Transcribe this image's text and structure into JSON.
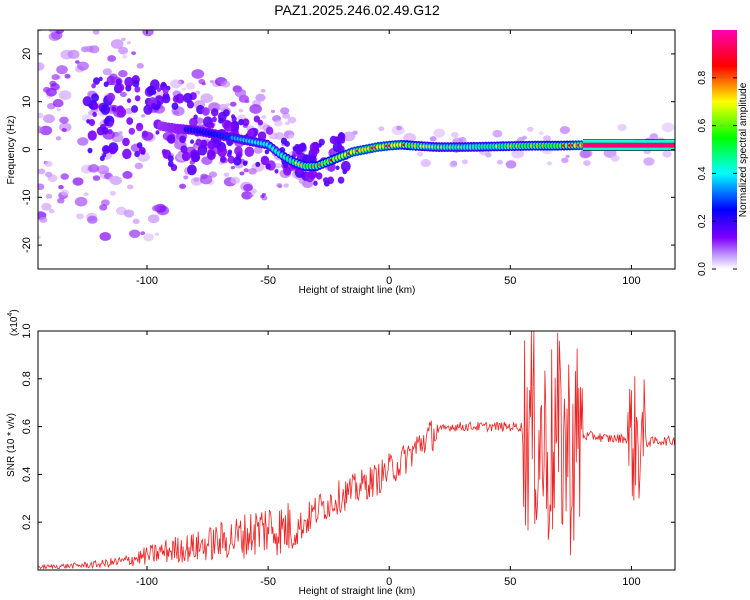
{
  "title": "PAZ1.2025.246.02.49.G12",
  "chart_data": [
    {
      "type": "heatmap",
      "xlabel": "Height of straight line (km)",
      "ylabel": "Frequency (Hz)",
      "xlim": [
        -145,
        118
      ],
      "ylim": [
        -25,
        25
      ],
      "xticks": [
        -100,
        -50,
        0,
        50,
        100
      ],
      "yticks": [
        -20,
        -10,
        0,
        10,
        20
      ],
      "colorbar": {
        "label": "Normalized spectral amplitude",
        "range": [
          0,
          1
        ],
        "ticks": [
          0.0,
          0.2,
          0.4,
          0.6,
          0.8
        ],
        "colormap": [
          "#ffffff",
          "#8000ff",
          "#0000ff",
          "#00ffff",
          "#00ff00",
          "#ffff00",
          "#ff0000",
          "#ff00b0"
        ]
      },
      "ridge": {
        "x": [
          -145,
          -130,
          -120,
          -110,
          -100,
          -90,
          -80,
          -70,
          -60,
          -50,
          -45,
          -40,
          -35,
          -30,
          -25,
          -20,
          -15,
          -10,
          -5,
          0,
          5,
          10,
          20,
          30,
          40,
          50,
          60,
          70,
          80,
          90,
          100,
          110,
          118
        ],
        "y": [
          6,
          7,
          7,
          6,
          5.5,
          4.5,
          4,
          3,
          2,
          1,
          -1,
          -2.5,
          -3.5,
          -3.5,
          -2.5,
          -1.5,
          -0.5,
          0,
          0.5,
          0.8,
          1,
          0.8,
          0.5,
          0.5,
          0.6,
          0.7,
          0.8,
          0.8,
          0.9,
          0.9,
          0.9,
          0.9,
          0.9
        ],
        "amp": [
          0.15,
          0.2,
          0.25,
          0.3,
          0.3,
          0.35,
          0.4,
          0.45,
          0.5,
          0.55,
          0.6,
          0.65,
          0.7,
          0.75,
          0.8,
          0.85,
          0.9,
          0.92,
          0.92,
          0.9,
          0.88,
          0.7,
          0.6,
          0.6,
          0.65,
          0.7,
          0.7,
          0.75,
          0.95,
          0.95,
          0.95,
          0.95,
          0.95
        ]
      }
    },
    {
      "type": "line",
      "xlabel": "Height of straight line (km)",
      "ylabel": "SNR (10 * v/v)",
      "scale_label": "(x10",
      "scale_exp": "4",
      "scale_close": ")",
      "xlim": [
        -145,
        118
      ],
      "ylim": [
        0,
        1.0
      ],
      "xticks": [
        -100,
        -50,
        0,
        50,
        100
      ],
      "yticks": [
        0.2,
        0.4,
        0.6,
        0.8,
        1.0
      ],
      "line_color": "#ee2222",
      "series": [
        {
          "x": [
            -145,
            -130,
            -120,
            -110,
            -100,
            -90,
            -80,
            -70,
            -60,
            -50,
            -45,
            -40,
            -35,
            -30,
            -25,
            -20,
            -15,
            -10,
            -5,
            0,
            5,
            10,
            15,
            20,
            25,
            30,
            40,
            50,
            55,
            60,
            65,
            70,
            75,
            80,
            85,
            90,
            95,
            100,
            105,
            110,
            118
          ],
          "y": [
            0.01,
            0.015,
            0.02,
            0.03,
            0.05,
            0.07,
            0.08,
            0.1,
            0.12,
            0.15,
            0.14,
            0.15,
            0.2,
            0.25,
            0.28,
            0.31,
            0.33,
            0.36,
            0.38,
            0.42,
            0.45,
            0.5,
            0.55,
            0.58,
            0.6,
            0.6,
            0.6,
            0.6,
            0.6,
            0.58,
            0.5,
            0.55,
            0.5,
            0.56,
            0.56,
            0.55,
            0.55,
            0.55,
            0.53,
            0.54,
            0.54
          ]
        }
      ]
    }
  ]
}
